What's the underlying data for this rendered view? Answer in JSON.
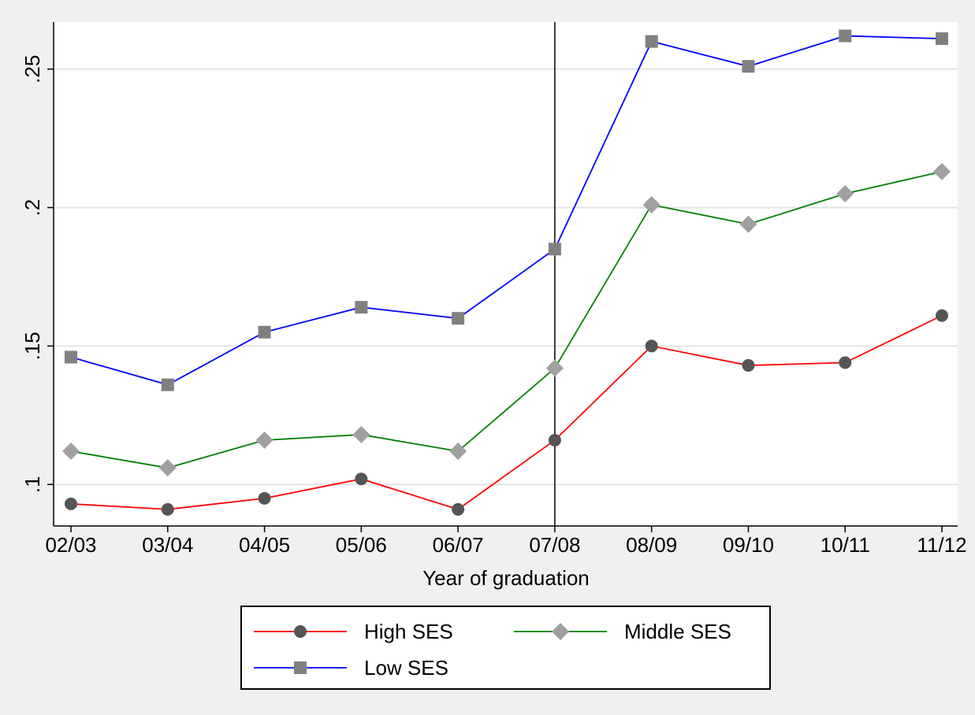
{
  "chart_data": {
    "type": "line",
    "title": "",
    "xlabel": "Year of graduation",
    "ylabel": "",
    "categories": [
      "02/03",
      "03/04",
      "04/05",
      "05/06",
      "06/07",
      "07/08",
      "08/09",
      "09/10",
      "10/11",
      "11/12"
    ],
    "yticks": [
      ".1",
      ".15",
      ".2",
      ".25"
    ],
    "ytick_values": [
      0.1,
      0.15,
      0.2,
      0.25
    ],
    "ylim": [
      0.085,
      0.267
    ],
    "grid": true,
    "legend_position": "bottom",
    "reference_line_at": "07/08",
    "series": [
      {
        "name": "High SES",
        "color": "#ff0000",
        "marker": "circle",
        "values": [
          0.093,
          0.091,
          0.095,
          0.102,
          0.091,
          0.116,
          0.15,
          0.143,
          0.144,
          0.161
        ]
      },
      {
        "name": "Middle SES",
        "color": "#008000",
        "marker": "diamond",
        "values": [
          0.112,
          0.106,
          0.116,
          0.118,
          0.112,
          0.142,
          0.201,
          0.194,
          0.205,
          0.213
        ]
      },
      {
        "name": "Low SES",
        "color": "#0000ff",
        "marker": "square",
        "values": [
          0.146,
          0.136,
          0.155,
          0.164,
          0.16,
          0.185,
          0.26,
          0.251,
          0.262,
          0.261
        ]
      }
    ]
  }
}
